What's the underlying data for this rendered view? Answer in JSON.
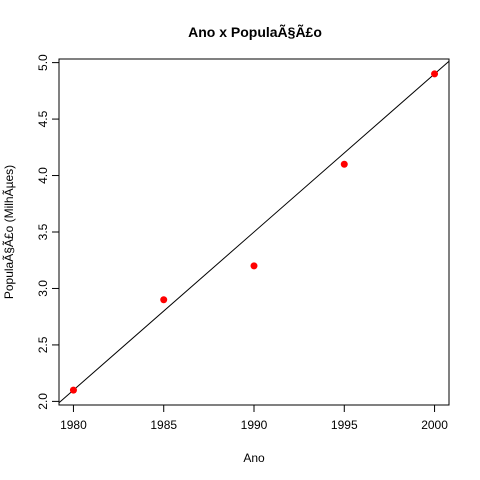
{
  "chart_data": {
    "type": "scatter",
    "title": "Ano x PopulaÃ§Ã£o",
    "xlabel": "Ano",
    "ylabel": "PopulaÃ§Ã£o (MilhÃµes)",
    "x": [
      1980,
      1985,
      1990,
      1995,
      2000
    ],
    "y": [
      2.1,
      2.9,
      3.2,
      4.1,
      4.9
    ],
    "xlim": [
      1979.2,
      2000.8
    ],
    "ylim": [
      1.968,
      5.032
    ],
    "x_ticks": [
      1980,
      1985,
      1990,
      1995,
      2000
    ],
    "x_tick_labels": [
      "1980",
      "1985",
      "1990",
      "1995",
      "2000"
    ],
    "y_ticks": [
      2.0,
      2.5,
      3.0,
      3.5,
      4.0,
      4.5,
      5.0
    ],
    "y_tick_labels": [
      "2.0",
      "2.5",
      "3.0",
      "3.5",
      "4.0",
      "4.5",
      "5.0"
    ],
    "fit_line": {
      "slope": 0.14,
      "intercept": -275.1
    },
    "point_color": "#ff0000",
    "line_color": "#000000",
    "grid": false
  }
}
